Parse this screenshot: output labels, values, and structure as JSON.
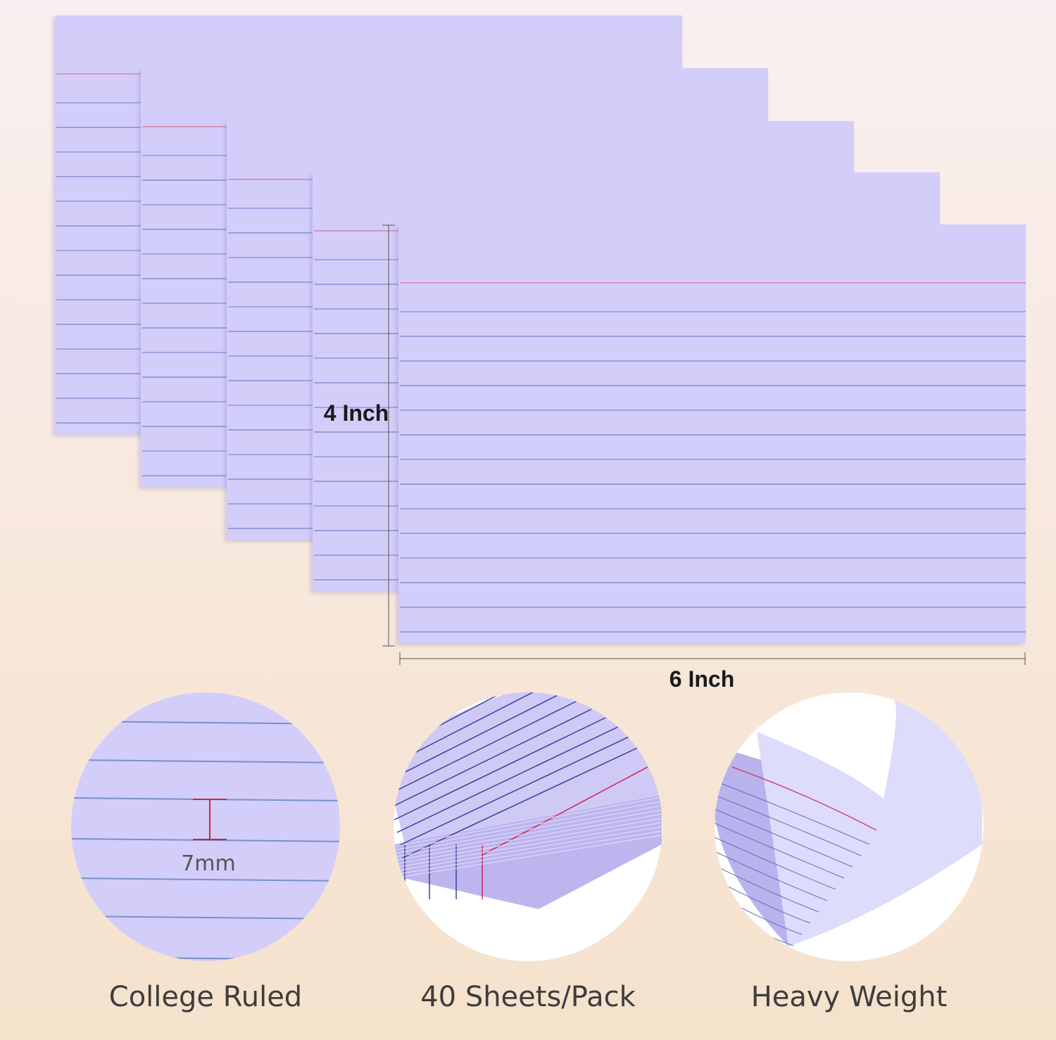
{
  "dimensions": {
    "height": "4 Inch",
    "width": "6 Inch"
  },
  "features": [
    {
      "label": "College Ruled",
      "detail": "7mm"
    },
    {
      "label": "40 Sheets/Pack"
    },
    {
      "label": "Heavy Weight"
    }
  ]
}
